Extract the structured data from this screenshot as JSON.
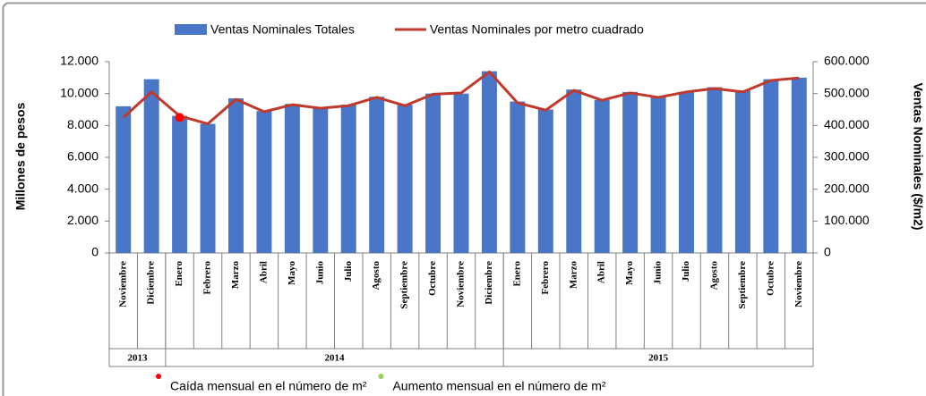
{
  "chart_data": {
    "type": "bar-line",
    "y_label": "Millones de pesos",
    "y2_label": "Ventas Nominales ($/m2)",
    "categories": [
      "Noviembre",
      "Diciembre",
      "Enero",
      "Febrero",
      "Marzo",
      "Abril",
      "Mayo",
      "Junio",
      "Julio",
      "Agosto",
      "Septiembre",
      "Octubre",
      "Noviembre",
      "Diciembre",
      "Enero",
      "Febrero",
      "Marzo",
      "Abril",
      "Mayo",
      "Junio",
      "Julio",
      "Agosto",
      "Septiembre",
      "Octubre",
      "Noviembre"
    ],
    "year_groups": [
      {
        "label": "2013",
        "count": 2
      },
      {
        "label": "2014",
        "count": 12
      },
      {
        "label": "2015",
        "count": 11
      }
    ],
    "series": [
      {
        "name": "Ventas Nominales Totales",
        "type": "bar",
        "color": "#4a76c8",
        "values": [
          9200,
          10900,
          8600,
          8100,
          9700,
          8900,
          9350,
          9100,
          9300,
          9800,
          9300,
          10000,
          10000,
          11400,
          9500,
          9000,
          10250,
          9600,
          10100,
          9800,
          10100,
          10400,
          10200,
          10900,
          11000
        ]
      },
      {
        "name": "Ventas Nominales por metro cuadrado",
        "type": "line",
        "axis": "y2",
        "color": "#c0392b",
        "values": [
          425000,
          505000,
          430000,
          405000,
          482000,
          443000,
          465000,
          454000,
          462000,
          488000,
          462000,
          498000,
          502000,
          568000,
          471000,
          448000,
          510000,
          479000,
          502000,
          488000,
          505000,
          516000,
          505000,
          541000,
          549000
        ]
      },
      {
        "name": "Caída mensual en el número de m²",
        "type": "marker",
        "axis": "y2",
        "color": "#ff0000",
        "values": [
          null,
          null,
          425000,
          null,
          null,
          null,
          null,
          null,
          null,
          null,
          null,
          null,
          null,
          null,
          null,
          null,
          null,
          null,
          null,
          null,
          null,
          null,
          null,
          null,
          null
        ]
      },
      {
        "name": "Aumento mensual en el número de m²",
        "type": "marker",
        "axis": "y2",
        "color": "#92d050",
        "values": [
          null,
          null,
          null,
          null,
          null,
          null,
          null,
          null,
          null,
          null,
          null,
          null,
          null,
          null,
          null,
          null,
          null,
          null,
          null,
          null,
          null,
          null,
          null,
          null,
          null
        ]
      }
    ],
    "ylim": [
      0,
      12000
    ],
    "yticks": [
      0,
      {
        "value": 2000,
        "label": "2.000"
      },
      {
        "value": 4000,
        "label": "4.000"
      },
      {
        "value": 6000,
        "label": "6.000"
      },
      {
        "value": 8000,
        "label": "8.000"
      },
      {
        "value": 10000,
        "label": "10.000"
      },
      {
        "value": 12000,
        "label": "12.000"
      }
    ],
    "y2lim": [
      0,
      600000
    ],
    "y2ticks": [
      0,
      {
        "value": 100000,
        "label": "100.000"
      },
      {
        "value": 200000,
        "label": "200.000"
      },
      {
        "value": 300000,
        "label": "300.000"
      },
      {
        "value": 400000,
        "label": "400.000"
      },
      {
        "value": 500000,
        "label": "500.000"
      },
      {
        "value": 600000,
        "label": "600.000"
      }
    ]
  }
}
